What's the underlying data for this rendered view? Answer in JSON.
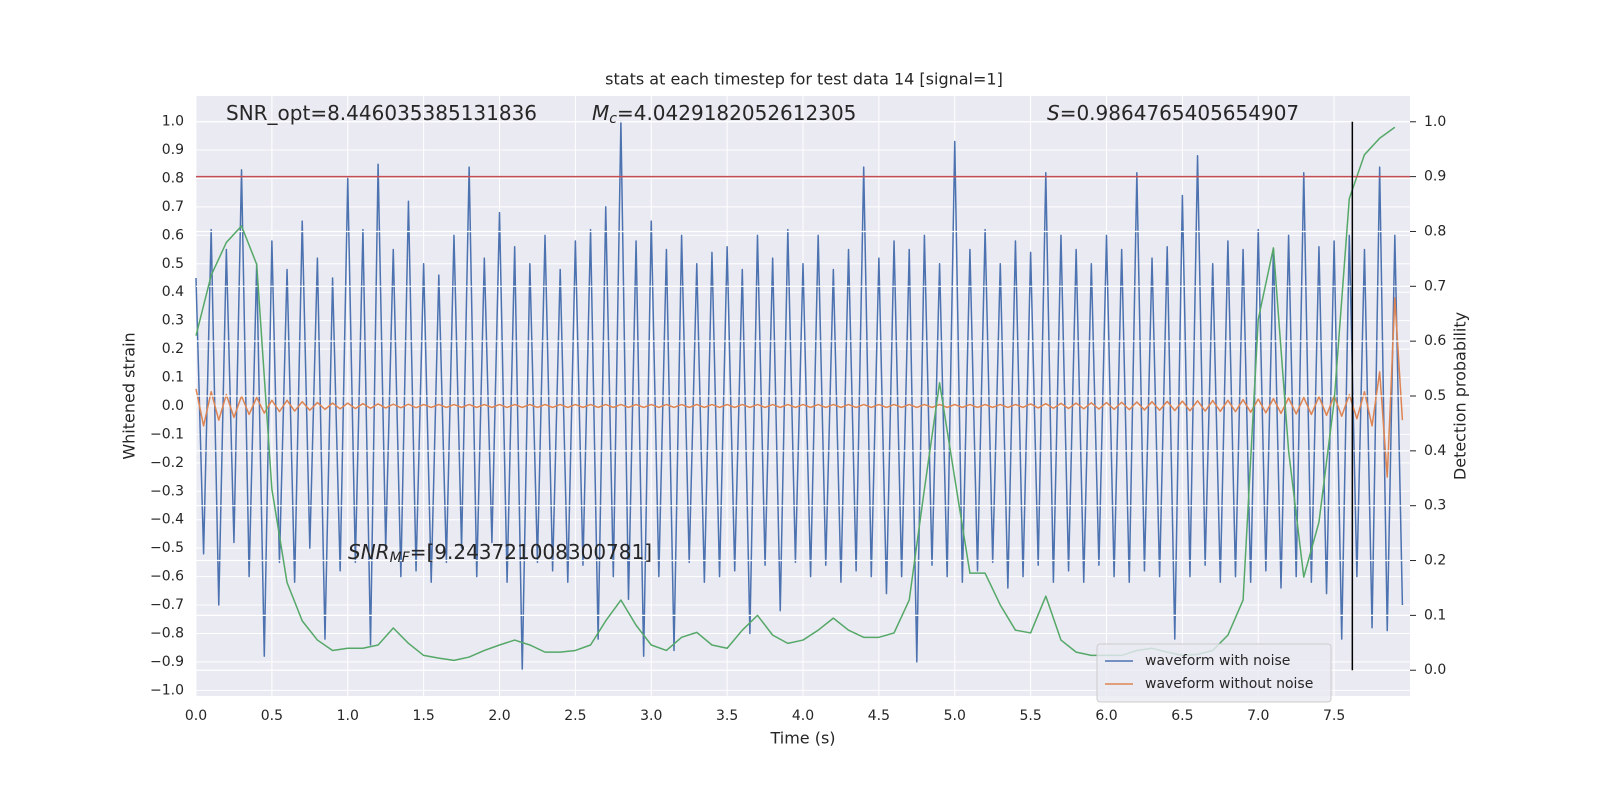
{
  "chart_data": {
    "type": "line",
    "title": "stats at each timestep for test data 14 [signal=1]",
    "xlabel": "Time (s)",
    "ylabel": "Whitened strain",
    "y2label": "Detection probability",
    "annotations": [
      {
        "text": "SNR_opt=8.446035385131836"
      },
      {
        "symbol": "M",
        "subscript": "c",
        "text": "=4.0429182052612305"
      },
      {
        "symbol": "S",
        "text": "=0.9864765405654907"
      },
      {
        "symbol": "SNR",
        "subscript": "MF",
        "text": "=[9.243721008300781]"
      }
    ],
    "xlim": [
      0,
      8
    ],
    "ylim": [
      -1.02,
      1.09
    ],
    "y2lim": [
      -0.047,
      1.047
    ],
    "grid": true,
    "legend": "lower right",
    "xticks": [
      {
        "value": 0,
        "label": "0.0"
      },
      0.5,
      {
        "value": 1,
        "label": "1.0"
      },
      1.5,
      {
        "value": 2,
        "label": "2.0"
      },
      2.5,
      {
        "value": 3,
        "label": "3.0"
      },
      3.5,
      {
        "value": 4,
        "label": "4.0"
      },
      4.5,
      {
        "value": 5,
        "label": "5.0"
      },
      5.5,
      {
        "value": 6,
        "label": "6.0"
      },
      6.5,
      {
        "value": 7,
        "label": "7.0"
      },
      7.5
    ],
    "yticks": [
      {
        "value": 1,
        "label": "1.0"
      },
      0.9,
      0.8,
      0.7,
      0.6,
      0.5,
      0.4,
      0.3,
      0.2,
      0.1,
      {
        "value": 0,
        "label": "0.0"
      },
      {
        "value": -0.1,
        "label": "−0.1"
      },
      {
        "value": -0.2,
        "label": "−0.2"
      },
      {
        "value": -0.3,
        "label": "−0.3"
      },
      {
        "value": -0.4,
        "label": "−0.4"
      },
      {
        "value": -0.5,
        "label": "−0.5"
      },
      {
        "value": -0.6,
        "label": "−0.6"
      },
      {
        "value": -0.7,
        "label": "−0.7"
      },
      {
        "value": -0.8,
        "label": "−0.8"
      },
      {
        "value": -0.9,
        "label": "−0.9"
      },
      {
        "value": -1,
        "label": "−1.0"
      }
    ],
    "y2ticks": [
      {
        "value": 0,
        "label": "0.0"
      },
      0.1,
      0.2,
      0.3,
      0.4,
      0.5,
      0.6,
      0.7,
      0.8,
      0.9,
      {
        "value": 1,
        "label": "1.0"
      }
    ],
    "x": [
      0,
      0.05,
      0.1,
      0.15,
      0.2,
      0.25,
      0.3,
      0.35,
      0.4,
      0.45,
      0.5,
      0.55,
      0.6,
      0.65,
      0.7,
      0.75,
      0.8,
      0.85,
      0.9,
      0.95,
      1,
      1.05,
      1.1,
      1.15,
      1.2,
      1.25,
      1.3,
      1.35,
      1.4,
      1.45,
      1.5,
      1.55,
      1.6,
      1.65,
      1.7,
      1.75,
      1.8,
      1.85,
      1.9,
      1.95,
      2,
      2.05,
      2.1,
      2.15,
      2.2,
      2.25,
      2.3,
      2.35,
      2.4,
      2.45,
      2.5,
      2.55,
      2.6,
      2.65,
      2.7,
      2.75,
      2.8,
      2.85,
      2.9,
      2.95,
      3,
      3.05,
      3.1,
      3.15,
      3.2,
      3.25,
      3.3,
      3.35,
      3.4,
      3.45,
      3.5,
      3.55,
      3.6,
      3.65,
      3.7,
      3.75,
      3.8,
      3.85,
      3.9,
      3.95,
      4,
      4.05,
      4.1,
      4.15,
      4.2,
      4.25,
      4.3,
      4.35,
      4.4,
      4.45,
      4.5,
      4.55,
      4.6,
      4.65,
      4.7,
      4.75,
      4.8,
      4.85,
      4.9,
      4.95,
      5,
      5.05,
      5.1,
      5.15,
      5.2,
      5.25,
      5.3,
      5.35,
      5.4,
      5.45,
      5.5,
      5.55,
      5.6,
      5.65,
      5.7,
      5.75,
      5.8,
      5.85,
      5.9,
      5.95,
      6,
      6.05,
      6.1,
      6.15,
      6.2,
      6.25,
      6.3,
      6.35,
      6.4,
      6.45,
      6.5,
      6.55,
      6.6,
      6.65,
      6.7,
      6.75,
      6.8,
      6.85,
      6.9,
      6.95,
      7,
      7.05,
      7.1,
      7.15,
      7.2,
      7.25,
      7.3,
      7.35,
      7.4,
      7.45,
      7.5,
      7.55,
      7.6,
      7.65,
      7.7,
      7.75,
      7.8,
      7.85,
      7.9,
      7.95
    ],
    "series": [
      {
        "name": "waveform with noise",
        "color": "#4c72b0",
        "values": [
          0.45,
          -0.52,
          0.62,
          -0.7,
          0.55,
          -0.48,
          0.83,
          -0.6,
          0.5,
          -0.88,
          0.58,
          -0.55,
          0.48,
          -0.62,
          0.65,
          -0.5,
          0.52,
          -0.82,
          0.45,
          -0.58,
          0.8,
          -0.55,
          0.62,
          -0.84,
          0.85,
          -0.5,
          0.55,
          -0.6,
          0.72,
          -0.58,
          0.5,
          -0.62,
          0.46,
          -0.55,
          0.6,
          -0.5,
          0.84,
          -0.6,
          0.52,
          -0.48,
          0.68,
          -0.62,
          0.56,
          -0.93,
          0.5,
          -0.55,
          0.6,
          -0.58,
          0.48,
          -0.62,
          0.58,
          -0.56,
          0.62,
          -0.82,
          0.7,
          -0.6,
          1.0,
          -0.68,
          0.58,
          -0.88,
          0.65,
          -0.6,
          0.55,
          -0.86,
          0.6,
          -0.55,
          0.5,
          -0.62,
          0.54,
          -0.6,
          0.56,
          -0.58,
          0.48,
          -0.8,
          0.6,
          -0.56,
          0.52,
          -0.72,
          0.62,
          -0.55,
          0.5,
          -0.6,
          0.6,
          -0.56,
          0.48,
          -0.62,
          0.55,
          -0.58,
          0.84,
          -0.6,
          0.52,
          -0.66,
          0.58,
          -0.6,
          0.55,
          -0.9,
          0.6,
          -0.56,
          0.5,
          -0.6,
          0.93,
          -0.62,
          0.55,
          -0.58,
          0.62,
          -0.55,
          0.5,
          -0.64,
          0.58,
          -0.6,
          0.54,
          -0.56,
          0.82,
          -0.62,
          0.6,
          -0.58,
          0.55,
          -0.62,
          0.5,
          -0.56,
          0.6,
          -0.6,
          0.55,
          -0.62,
          0.82,
          -0.58,
          0.52,
          -0.6,
          0.56,
          -0.82,
          0.74,
          -0.6,
          0.88,
          -0.56,
          0.5,
          -0.62,
          0.58,
          -0.6,
          0.55,
          -0.62,
          0.62,
          -0.58,
          0.55,
          -0.64,
          0.6,
          -0.6,
          0.82,
          -0.62,
          0.56,
          -0.66,
          0.58,
          -0.82,
          0.6,
          -0.6,
          0.55,
          -0.78,
          0.84,
          -0.79,
          0.6,
          -0.7
        ]
      },
      {
        "name": "waveform without noise",
        "color": "#dd8452",
        "values": [
          0.06,
          -0.07,
          0.05,
          -0.05,
          0.04,
          -0.04,
          0.035,
          -0.03,
          0.03,
          -0.025,
          0.02,
          -0.02,
          0.02,
          -0.018,
          0.015,
          -0.015,
          0.012,
          -0.012,
          0.01,
          -0.01,
          0.01,
          -0.009,
          0.008,
          -0.008,
          0.007,
          -0.007,
          0.006,
          -0.006,
          0.006,
          -0.006,
          0.005,
          -0.005,
          0.005,
          -0.005,
          0.005,
          -0.005,
          0.005,
          -0.005,
          0.005,
          -0.005,
          0.005,
          -0.005,
          0.005,
          -0.005,
          0.005,
          -0.005,
          0.005,
          -0.005,
          0.005,
          -0.005,
          0.005,
          -0.005,
          0.005,
          -0.005,
          0.005,
          -0.005,
          0.005,
          -0.005,
          0.005,
          -0.005,
          0.005,
          -0.005,
          0.005,
          -0.005,
          0.005,
          -0.005,
          0.005,
          -0.005,
          0.005,
          -0.005,
          0.005,
          -0.005,
          0.005,
          -0.005,
          0.005,
          -0.005,
          0.005,
          -0.005,
          0.005,
          -0.005,
          0.005,
          -0.005,
          0.005,
          -0.005,
          0.005,
          -0.005,
          0.005,
          -0.005,
          0.005,
          -0.005,
          0.005,
          -0.005,
          0.005,
          -0.005,
          0.005,
          -0.005,
          0.005,
          -0.005,
          0.005,
          -0.005,
          0.005,
          -0.005,
          0.005,
          -0.005,
          0.005,
          -0.005,
          0.005,
          -0.005,
          0.005,
          -0.005,
          0.007,
          -0.007,
          0.008,
          -0.008,
          0.009,
          -0.009,
          0.01,
          -0.01,
          0.011,
          -0.011,
          0.012,
          -0.012,
          0.013,
          -0.013,
          0.014,
          -0.014,
          0.015,
          -0.015,
          0.016,
          -0.016,
          0.017,
          -0.017,
          0.018,
          -0.018,
          0.019,
          -0.019,
          0.02,
          -0.02,
          0.022,
          -0.022,
          0.024,
          -0.024,
          0.026,
          -0.026,
          0.028,
          -0.028,
          0.03,
          -0.03,
          0.033,
          -0.033,
          0.036,
          -0.036,
          0.04,
          -0.045,
          0.05,
          -0.07,
          0.12,
          -0.25,
          0.38,
          -0.05
        ]
      },
      {
        "color": "#55a868",
        "axis": "y2",
        "x": [
          0,
          0.1,
          0.2,
          0.3,
          0.4,
          0.5,
          0.6,
          0.7,
          0.8,
          0.9,
          1,
          1.1,
          1.2,
          1.3,
          1.4,
          1.5,
          1.6,
          1.7,
          1.8,
          1.9,
          2,
          2.1,
          2.2,
          2.3,
          2.4,
          2.5,
          2.6,
          2.7,
          2.8,
          2.9,
          3,
          3.1,
          3.2,
          3.3,
          3.4,
          3.5,
          3.6,
          3.7,
          3.8,
          3.9,
          4,
          4.1,
          4.2,
          4.3,
          4.4,
          4.5,
          4.6,
          4.7,
          4.8,
          4.9,
          5,
          5.1,
          5.2,
          5.3,
          5.4,
          5.5,
          5.6,
          5.7,
          5.8,
          5.9,
          6,
          6.1,
          6.2,
          6.3,
          6.4,
          6.5,
          6.6,
          6.7,
          6.8,
          6.9,
          7,
          7.1,
          7.2,
          7.3,
          7.4,
          7.5,
          7.6,
          7.7,
          7.8,
          7.9
        ],
        "values": [
          0.61,
          0.72,
          0.78,
          0.81,
          0.74,
          0.33,
          0.16,
          0.09,
          0.055,
          0.036,
          0.04,
          0.04,
          0.046,
          0.077,
          0.049,
          0.027,
          0.022,
          0.018,
          0.024,
          0.036,
          0.046,
          0.055,
          0.046,
          0.033,
          0.033,
          0.036,
          0.046,
          0.09,
          0.128,
          0.082,
          0.046,
          0.036,
          0.06,
          0.069,
          0.046,
          0.04,
          0.073,
          0.1,
          0.064,
          0.049,
          0.055,
          0.073,
          0.095,
          0.073,
          0.06,
          0.06,
          0.068,
          0.128,
          0.33,
          0.524,
          0.35,
          0.177,
          0.177,
          0.119,
          0.073,
          0.068,
          0.135,
          0.055,
          0.033,
          0.027,
          0.027,
          0.027,
          0.036,
          0.04,
          0.033,
          0.027,
          0.029,
          0.036,
          0.064,
          0.128,
          0.64,
          0.77,
          0.4,
          0.17,
          0.27,
          0.49,
          0.86,
          0.94,
          0.97,
          0.99
        ]
      }
    ],
    "hlines": [
      {
        "y": 0.9,
        "axis": "y2",
        "color": "#c44e52"
      }
    ],
    "vlines": [
      {
        "x": 7.62,
        "ymin": 0,
        "ymax": 1,
        "axis": "y2",
        "color": "#000000"
      }
    ]
  }
}
